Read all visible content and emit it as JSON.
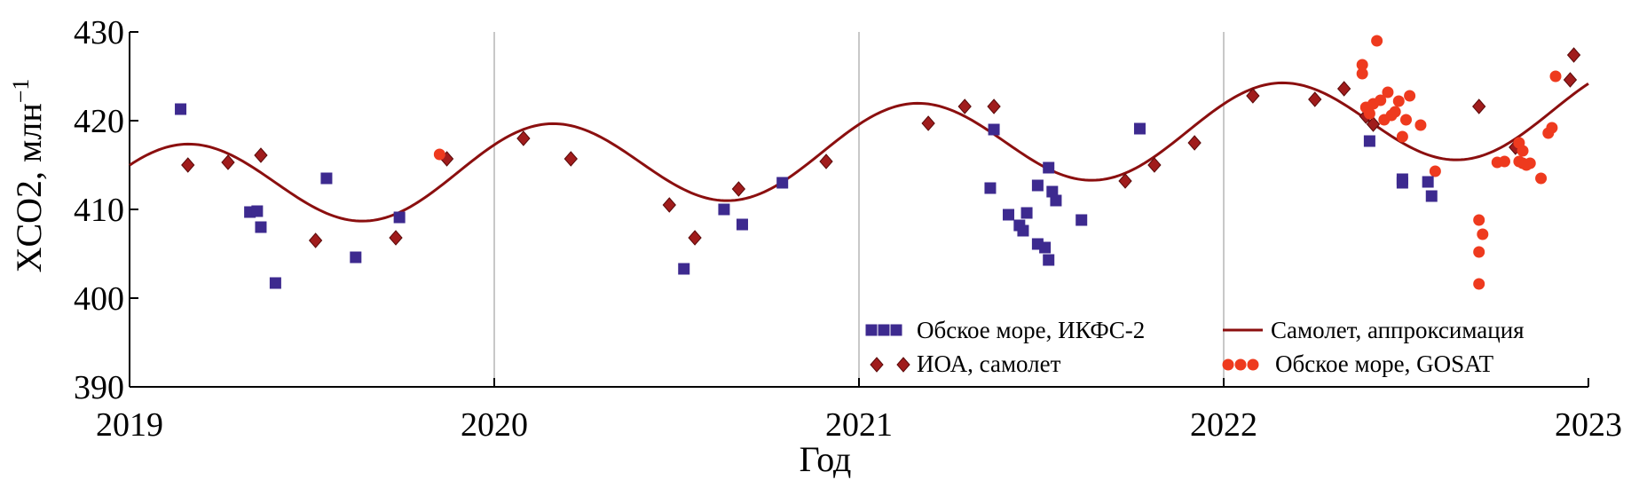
{
  "chart_data": {
    "type": "scatter",
    "xlabel": "Год",
    "ylabel": "XCO2, млн",
    "ylabel_sup": "−1",
    "xlim": [
      2019,
      2023
    ],
    "ylim": [
      390,
      430
    ],
    "x_ticks": [
      2019,
      2020,
      2021,
      2022,
      2023
    ],
    "y_ticks": [
      390,
      400,
      410,
      420,
      430
    ],
    "vertical_gridlines_at": [
      2020,
      2021,
      2022
    ],
    "legend_placement": "bottom-right",
    "colors": {
      "ikfs": "#3d2a8f",
      "ioa": "#a01c1c",
      "fit": "#8b0f0f",
      "gosat": "#ee3a1e",
      "grid": "#c8c8c8"
    },
    "series": [
      {
        "name": "Обское море, ИКФС-2",
        "marker": "square",
        "points": [
          [
            2019.14,
            421.3
          ],
          [
            2019.33,
            409.7
          ],
          [
            2019.35,
            409.8
          ],
          [
            2019.36,
            408.0
          ],
          [
            2019.4,
            401.7
          ],
          [
            2019.54,
            413.5
          ],
          [
            2019.62,
            404.6
          ],
          [
            2019.74,
            409.1
          ],
          [
            2020.52,
            403.3
          ],
          [
            2020.63,
            410.0
          ],
          [
            2020.68,
            408.3
          ],
          [
            2020.79,
            413.0
          ],
          [
            2021.36,
            412.4
          ],
          [
            2021.37,
            419.0
          ],
          [
            2021.41,
            409.4
          ],
          [
            2021.44,
            408.2
          ],
          [
            2021.45,
            407.6
          ],
          [
            2021.46,
            409.6
          ],
          [
            2021.49,
            406.1
          ],
          [
            2021.49,
            412.7
          ],
          [
            2021.51,
            405.7
          ],
          [
            2021.52,
            404.3
          ],
          [
            2021.52,
            414.7
          ],
          [
            2021.53,
            412.0
          ],
          [
            2021.54,
            411.0
          ],
          [
            2021.61,
            408.8
          ],
          [
            2021.77,
            419.1
          ],
          [
            2022.4,
            417.7
          ],
          [
            2022.49,
            413.0
          ],
          [
            2022.49,
            413.4
          ],
          [
            2022.56,
            413.1
          ],
          [
            2022.57,
            411.5
          ]
        ]
      },
      {
        "name": "ИОА, самолет",
        "marker": "diamond",
        "points": [
          [
            2019.16,
            415.0
          ],
          [
            2019.27,
            415.3
          ],
          [
            2019.36,
            416.1
          ],
          [
            2019.51,
            406.5
          ],
          [
            2019.73,
            406.8
          ],
          [
            2019.87,
            415.7
          ],
          [
            2020.08,
            418.0
          ],
          [
            2020.21,
            415.7
          ],
          [
            2020.48,
            410.5
          ],
          [
            2020.55,
            406.8
          ],
          [
            2020.67,
            412.3
          ],
          [
            2020.91,
            415.4
          ],
          [
            2021.19,
            419.7
          ],
          [
            2021.29,
            421.6
          ],
          [
            2021.37,
            421.6
          ],
          [
            2021.73,
            413.2
          ],
          [
            2021.81,
            415.0
          ],
          [
            2021.92,
            417.5
          ],
          [
            2022.08,
            422.8
          ],
          [
            2022.25,
            422.4
          ],
          [
            2022.33,
            423.6
          ],
          [
            2022.39,
            420.5
          ],
          [
            2022.41,
            419.6
          ],
          [
            2022.7,
            421.6
          ],
          [
            2022.8,
            417.0
          ],
          [
            2022.95,
            424.6
          ],
          [
            2022.96,
            427.4
          ]
        ]
      },
      {
        "name": "Самолет, аппроксимация",
        "marker": "line",
        "fit": {
          "base_at_2019": 412.1,
          "trend_per_year": 2.3,
          "amplitude": 4.9,
          "peak_phase_year": 0.15
        }
      },
      {
        "name": "Обское море, GOSAT",
        "marker": "circle",
        "points": [
          [
            2019.85,
            416.2
          ],
          [
            2022.38,
            425.3
          ],
          [
            2022.38,
            426.3
          ],
          [
            2022.39,
            421.5
          ],
          [
            2022.4,
            420.8
          ],
          [
            2022.41,
            421.9
          ],
          [
            2022.42,
            429.0
          ],
          [
            2022.43,
            422.3
          ],
          [
            2022.44,
            420.1
          ],
          [
            2022.45,
            423.2
          ],
          [
            2022.46,
            420.6
          ],
          [
            2022.47,
            421.0
          ],
          [
            2022.48,
            422.2
          ],
          [
            2022.49,
            418.2
          ],
          [
            2022.5,
            420.1
          ],
          [
            2022.51,
            422.8
          ],
          [
            2022.54,
            419.5
          ],
          [
            2022.58,
            414.3
          ],
          [
            2022.7,
            408.8
          ],
          [
            2022.7,
            405.2
          ],
          [
            2022.7,
            401.6
          ],
          [
            2022.71,
            407.2
          ],
          [
            2022.75,
            415.3
          ],
          [
            2022.77,
            415.4
          ],
          [
            2022.81,
            415.4
          ],
          [
            2022.81,
            417.5
          ],
          [
            2022.82,
            416.6
          ],
          [
            2022.82,
            415.2
          ],
          [
            2022.83,
            415.0
          ],
          [
            2022.84,
            415.2
          ],
          [
            2022.87,
            413.5
          ],
          [
            2022.89,
            418.6
          ],
          [
            2022.9,
            419.2
          ],
          [
            2022.91,
            425.0
          ]
        ]
      }
    ]
  }
}
